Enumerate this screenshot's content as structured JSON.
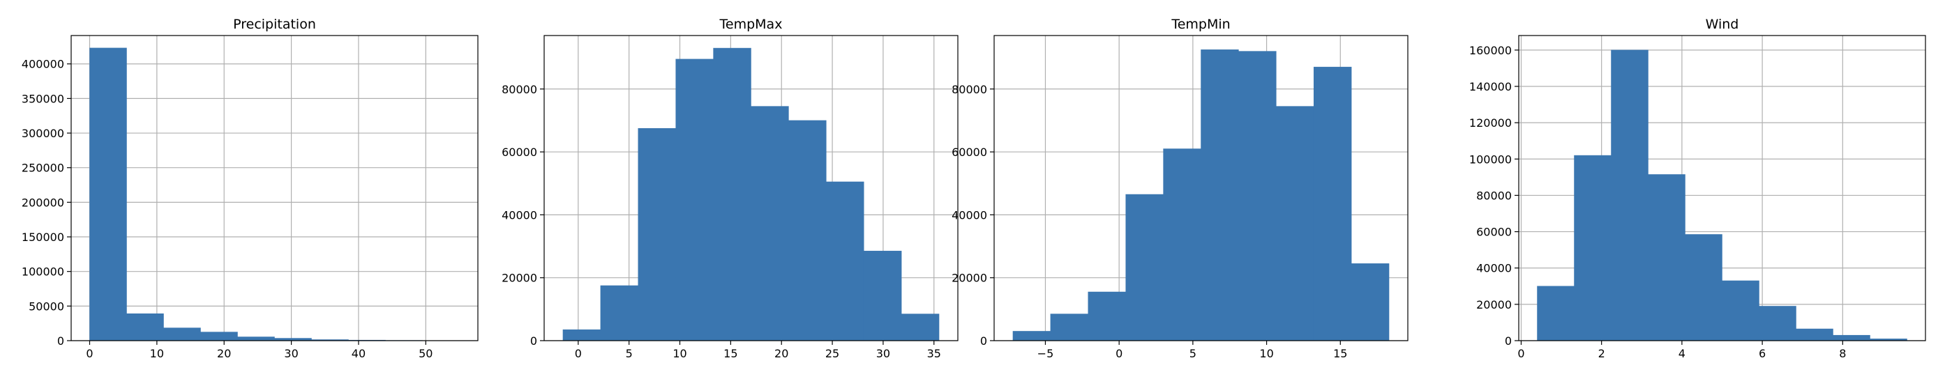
{
  "chart_data": [
    {
      "type": "bar",
      "title": "Precipitation",
      "xlabel": "",
      "ylabel": "",
      "bin_edges": [
        0,
        5.5,
        11,
        16.5,
        22,
        27.5,
        33,
        38.5,
        44,
        49.5,
        55
      ],
      "values": [
        423000,
        39000,
        18500,
        12500,
        5500,
        3500,
        1500,
        800,
        400,
        200
      ],
      "xlim": [
        -2.75,
        57.75
      ],
      "ylim": [
        0,
        441000
      ],
      "xticks": [
        0,
        10,
        20,
        30,
        40,
        50
      ],
      "yticks": [
        0,
        50000,
        100000,
        150000,
        200000,
        250000,
        300000,
        350000,
        400000
      ],
      "grid": true,
      "color": "#3a76b0"
    },
    {
      "type": "bar",
      "title": "TempMax",
      "xlabel": "",
      "ylabel": "",
      "bin_edges": [
        -1.5,
        2.2,
        5.9,
        9.6,
        13.3,
        17.0,
        20.7,
        24.4,
        28.1,
        31.8,
        35.5
      ],
      "values": [
        3500,
        17500,
        67500,
        89500,
        93000,
        74500,
        70000,
        50500,
        28500,
        8500
      ],
      "xlim": [
        -3.35,
        37.35
      ],
      "ylim": [
        0,
        97000
      ],
      "xticks": [
        0,
        5,
        10,
        15,
        20,
        25,
        30,
        35
      ],
      "yticks": [
        0,
        20000,
        40000,
        60000,
        80000
      ],
      "grid": true,
      "color": "#3a76b0"
    },
    {
      "type": "bar",
      "title": "TempMin",
      "xlabel": "",
      "ylabel": "",
      "bin_edges": [
        -7.2,
        -4.65,
        -2.1,
        0.45,
        3.0,
        5.55,
        8.1,
        10.65,
        13.2,
        15.75,
        18.3
      ],
      "values": [
        3000,
        8500,
        15500,
        46500,
        61000,
        92500,
        92000,
        74500,
        87000,
        24500
      ],
      "xlim": [
        -8.475,
        19.575
      ],
      "ylim": [
        0,
        97000
      ],
      "xticks": [
        -5,
        0,
        5,
        10,
        15
      ],
      "yticks": [
        0,
        20000,
        40000,
        60000,
        80000
      ],
      "grid": true,
      "color": "#3a76b0"
    },
    {
      "type": "bar",
      "title": "Wind",
      "xlabel": "",
      "ylabel": "",
      "bin_edges": [
        0.4,
        1.32,
        2.24,
        3.16,
        4.08,
        5.0,
        5.92,
        6.84,
        7.76,
        8.68,
        9.6
      ],
      "values": [
        30000,
        102000,
        160000,
        91500,
        58500,
        33000,
        19000,
        6500,
        3000,
        1000
      ],
      "xlim": [
        -0.06,
        10.06
      ],
      "ylim": [
        0,
        168000
      ],
      "xticks": [
        0,
        2,
        4,
        6,
        8
      ],
      "yticks": [
        0,
        20000,
        40000,
        60000,
        80000,
        100000,
        120000,
        140000,
        160000
      ],
      "grid": true,
      "color": "#3a76b0"
    }
  ]
}
